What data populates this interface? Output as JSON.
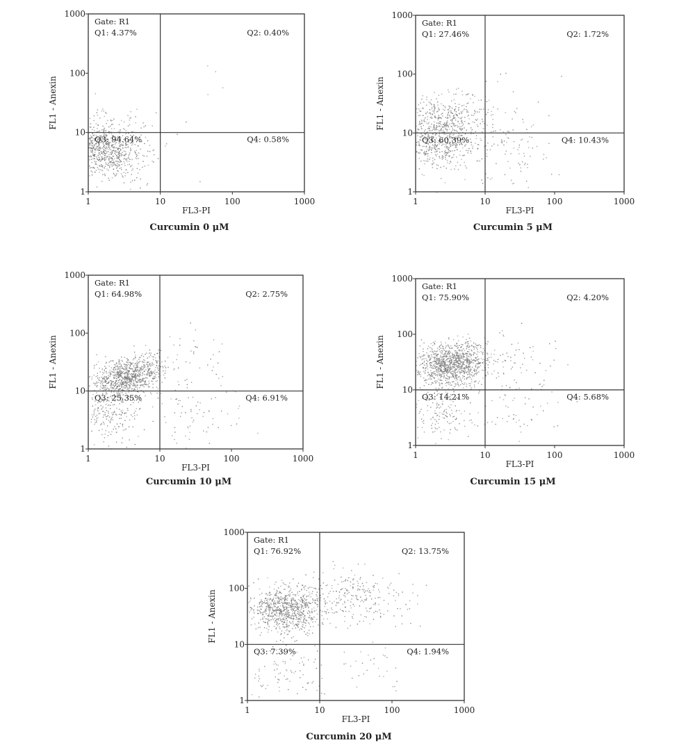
{
  "chart_data": [
    {
      "type": "scatter",
      "title": "Curcumin 0 μM",
      "xlabel": "FL3-PI",
      "ylabel": "FL1 - Anexin",
      "xscale": "log",
      "yscale": "log",
      "xlim": [
        1,
        1000
      ],
      "ylim": [
        1,
        1000
      ],
      "xticks": [
        "1",
        "10",
        "100",
        "1000"
      ],
      "yticks": [
        "1",
        "10",
        "100",
        "1000"
      ],
      "gate": "Gate: R1",
      "quadrant_divider": {
        "x": 10,
        "y": 10
      },
      "quadrants": {
        "Q1": "Q1: 4.37%",
        "Q2": "Q2: 0.40%",
        "Q3": "Q3: 94.64%",
        "Q4": "Q4: 0.58%"
      },
      "point_color": "#777777",
      "density": [
        {
          "x": 1.6,
          "y": 5.5,
          "sx": 0.24,
          "sy": 0.2,
          "n": 650
        },
        {
          "x": 2.6,
          "y": 3.5,
          "sx": 0.25,
          "sy": 0.3,
          "n": 150
        },
        {
          "x": 2.5,
          "y": 18,
          "sx": 0.3,
          "sy": 0.15,
          "n": 30
        },
        {
          "x": 15,
          "y": 5,
          "sx": 0.25,
          "sy": 0.35,
          "n": 6
        },
        {
          "x": 60,
          "y": 80,
          "sx": 0.2,
          "sy": 0.15,
          "n": 4
        }
      ]
    },
    {
      "type": "scatter",
      "title": "Curcumin 5 μM",
      "xlabel": "FL3-PI",
      "ylabel": "FL1 - Anexin",
      "xscale": "log",
      "yscale": "log",
      "xlim": [
        1,
        1000
      ],
      "ylim": [
        1,
        1000
      ],
      "xticks": [
        "1",
        "10",
        "100",
        "1000"
      ],
      "yticks": [
        "1",
        "10",
        "100",
        "1000"
      ],
      "gate": "Gate: R1",
      "quadrant_divider": {
        "x": 10,
        "y": 10
      },
      "quadrants": {
        "Q1": "Q1: 27.46%",
        "Q2": "Q2: 1.72%",
        "Q3": "Q3: 60.39%",
        "Q4": "Q4: 10.43%"
      },
      "point_color": "#777777",
      "density": [
        {
          "x": 2.2,
          "y": 8,
          "sx": 0.28,
          "sy": 0.25,
          "n": 580
        },
        {
          "x": 3,
          "y": 20,
          "sx": 0.3,
          "sy": 0.18,
          "n": 230
        },
        {
          "x": 20,
          "y": 5,
          "sx": 0.35,
          "sy": 0.35,
          "n": 95
        },
        {
          "x": 20,
          "y": 30,
          "sx": 0.35,
          "sy": 0.3,
          "n": 20
        }
      ]
    },
    {
      "type": "scatter",
      "title": "Curcumin 10 μM",
      "xlabel": "FL3-PI",
      "ylabel": "FL1 - Anexin",
      "xscale": "log",
      "yscale": "log",
      "xlim": [
        1,
        1000
      ],
      "ylim": [
        1,
        1000
      ],
      "xticks": [
        "1",
        "10",
        "100",
        "1000"
      ],
      "yticks": [
        "1",
        "10",
        "100",
        "1000"
      ],
      "gate": "Gate: R1",
      "quadrant_divider": {
        "x": 10,
        "y": 10
      },
      "quadrants": {
        "Q1": "Q1: 64.98%",
        "Q2": "Q2: 2.75%",
        "Q3": "Q3: 25.35%",
        "Q4": "Q4: 6.91%"
      },
      "point_color": "#777777",
      "density": [
        {
          "x": 3.2,
          "y": 17,
          "sx": 0.2,
          "sy": 0.15,
          "n": 650
        },
        {
          "x": 5.5,
          "y": 27,
          "sx": 0.18,
          "sy": 0.14,
          "n": 200
        },
        {
          "x": 2,
          "y": 5,
          "sx": 0.22,
          "sy": 0.3,
          "n": 250
        },
        {
          "x": 25,
          "y": 25,
          "sx": 0.35,
          "sy": 0.3,
          "n": 50
        },
        {
          "x": 25,
          "y": 4,
          "sx": 0.35,
          "sy": 0.3,
          "n": 70
        }
      ]
    },
    {
      "type": "scatter",
      "title": "Curcumin 15 μM",
      "xlabel": "FL3-PI",
      "ylabel": "FL1 - Anexin",
      "xscale": "log",
      "yscale": "log",
      "xlim": [
        1,
        1000
      ],
      "ylim": [
        1,
        1000
      ],
      "xticks": [
        "1",
        "10",
        "100",
        "1000"
      ],
      "yticks": [
        "1",
        "10",
        "100",
        "1000"
      ],
      "gate": "Gate: R1",
      "quadrant_divider": {
        "x": 10,
        "y": 10
      },
      "quadrants": {
        "Q1": "Q1: 75.90%",
        "Q2": "Q2: 4.20%",
        "Q3": "Q3: 14.21%",
        "Q4": "Q4: 5.68%"
      },
      "point_color": "#777777",
      "density": [
        {
          "x": 3,
          "y": 28,
          "sx": 0.24,
          "sy": 0.18,
          "n": 900
        },
        {
          "x": 5,
          "y": 45,
          "sx": 0.2,
          "sy": 0.15,
          "n": 180
        },
        {
          "x": 2.3,
          "y": 4,
          "sx": 0.2,
          "sy": 0.3,
          "n": 160
        },
        {
          "x": 30,
          "y": 30,
          "sx": 0.35,
          "sy": 0.3,
          "n": 60
        },
        {
          "x": 30,
          "y": 4.5,
          "sx": 0.35,
          "sy": 0.3,
          "n": 65
        }
      ]
    },
    {
      "type": "scatter",
      "title": "Curcumin 20 μM",
      "xlabel": "FL3-PI",
      "ylabel": "FL1 - Anexin",
      "xscale": "log",
      "yscale": "log",
      "xlim": [
        1,
        1000
      ],
      "ylim": [
        1,
        1000
      ],
      "xticks": [
        "1",
        "10",
        "100",
        "1000"
      ],
      "yticks": [
        "1",
        "10",
        "100",
        "1000"
      ],
      "gate": "Gate: R1",
      "quadrant_divider": {
        "x": 10,
        "y": 10
      },
      "quadrants": {
        "Q1": "Q1: 76.92%",
        "Q2": "Q2: 13.75%",
        "Q3": "Q3: 7.39%",
        "Q4": "Q4: 1.94%"
      },
      "point_color": "#777777",
      "density": [
        {
          "x": 3.5,
          "y": 45,
          "sx": 0.26,
          "sy": 0.2,
          "n": 800
        },
        {
          "x": 35,
          "y": 70,
          "sx": 0.35,
          "sy": 0.25,
          "n": 230
        },
        {
          "x": 3,
          "y": 4,
          "sx": 0.3,
          "sy": 0.3,
          "n": 100
        },
        {
          "x": 60,
          "y": 4,
          "sx": 0.35,
          "sy": 0.3,
          "n": 35
        }
      ]
    }
  ]
}
